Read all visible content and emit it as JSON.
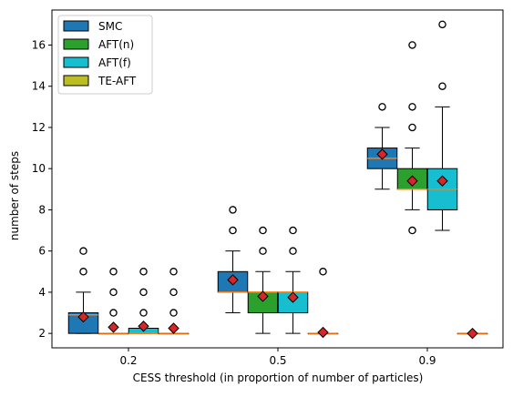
{
  "chart_data": {
    "type": "box",
    "xlabel": "CESS threshold (in proportion of number of particles)",
    "ylabel": "number of steps",
    "categories": [
      "0.2",
      "0.5",
      "0.9"
    ],
    "ylim": [
      1.3,
      17.7
    ],
    "yticks": [
      2,
      4,
      6,
      8,
      10,
      12,
      14,
      16
    ],
    "legend": {
      "placement": "top-left",
      "entries": [
        {
          "name": "SMC",
          "color": "#1f77b4"
        },
        {
          "name": "AFT(n)",
          "color": "#2ca02c"
        },
        {
          "name": "AFT(f)",
          "color": "#17becf"
        },
        {
          "name": "TE-AFT",
          "color": "#bcbd22"
        }
      ]
    },
    "median_color": "#ff7f0e",
    "mean_marker_color": "#d62728",
    "series": [
      {
        "name": "SMC",
        "color": "#1f77b4",
        "boxes": [
          {
            "category": "0.2",
            "q1": 2,
            "median": 2.9,
            "q3": 3,
            "whisker_low": 2,
            "whisker_high": 4,
            "mean": 2.8,
            "outliers": [
              5,
              6
            ]
          },
          {
            "category": "0.5",
            "q1": 4,
            "median": 4,
            "q3": 5,
            "whisker_low": 3,
            "whisker_high": 6,
            "mean": 4.6,
            "outliers": [
              7,
              8
            ]
          },
          {
            "category": "0.9",
            "q1": 10,
            "median": 10.5,
            "q3": 11,
            "whisker_low": 9,
            "whisker_high": 12,
            "mean": 10.7,
            "outliers": [
              13
            ]
          }
        ]
      },
      {
        "name": "AFT(n)",
        "color": "#2ca02c",
        "boxes": [
          {
            "category": "0.2",
            "q1": 2,
            "median": 2,
            "q3": 2,
            "whisker_low": 2,
            "whisker_high": 2,
            "mean": 2.3,
            "outliers": [
              3,
              4,
              5
            ]
          },
          {
            "category": "0.5",
            "q1": 3,
            "median": 4,
            "q3": 4,
            "whisker_low": 2,
            "whisker_high": 5,
            "mean": 3.8,
            "outliers": [
              6,
              7
            ]
          },
          {
            "category": "0.9",
            "q1": 9,
            "median": 9,
            "q3": 10,
            "whisker_low": 8,
            "whisker_high": 11,
            "mean": 9.4,
            "outliers": [
              7,
              12,
              13,
              16
            ]
          }
        ]
      },
      {
        "name": "AFT(f)",
        "color": "#17becf",
        "boxes": [
          {
            "category": "0.2",
            "q1": 2,
            "median": 2,
            "q3": 2.25,
            "whisker_low": 2,
            "whisker_high": 2.25,
            "mean": 2.35,
            "outliers": [
              3,
              4,
              5
            ]
          },
          {
            "category": "0.5",
            "q1": 3,
            "median": 4,
            "q3": 4,
            "whisker_low": 2,
            "whisker_high": 5,
            "mean": 3.75,
            "outliers": [
              6,
              7
            ]
          },
          {
            "category": "0.9",
            "q1": 8,
            "median": 9,
            "q3": 10,
            "whisker_low": 7,
            "whisker_high": 13,
            "mean": 9.4,
            "outliers": [
              14,
              17
            ]
          }
        ]
      },
      {
        "name": "TE-AFT",
        "color": "#bcbd22",
        "boxes": [
          {
            "category": "0.2",
            "q1": 2,
            "median": 2,
            "q3": 2,
            "whisker_low": 2,
            "whisker_high": 2,
            "mean": 2.25,
            "outliers": [
              3,
              4,
              5
            ]
          },
          {
            "category": "0.5",
            "q1": 2,
            "median": 2,
            "q3": 2,
            "whisker_low": 2,
            "whisker_high": 2,
            "mean": 2.05,
            "outliers": [
              5
            ]
          },
          {
            "category": "0.9",
            "q1": 2,
            "median": 2,
            "q3": 2,
            "whisker_low": 2,
            "whisker_high": 2,
            "mean": 2,
            "outliers": []
          }
        ]
      }
    ]
  }
}
